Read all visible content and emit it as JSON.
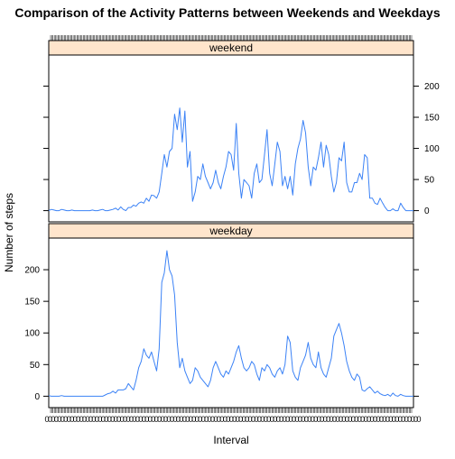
{
  "chart_data": {
    "type": "line",
    "title": "Comparison of the Activity Patterns between Weekends and Weekdays",
    "xlabel": "Interval",
    "ylabel": "Number of steps",
    "ylim": [
      -18,
      250
    ],
    "yticks": [
      0,
      50,
      100,
      150,
      200
    ],
    "line_color": "#3b82f6",
    "strip_color": "#ffe5cc",
    "grid": false,
    "x_tick_label_note": "dense overlapping interval labels (0–2355), unreadable",
    "panels": [
      {
        "name": "weekend",
        "x_index_range": [
          0,
          287
        ],
        "values": [
          [
            0,
            0
          ],
          [
            5,
            2
          ],
          [
            10,
            1
          ],
          [
            15,
            0
          ],
          [
            20,
            0
          ],
          [
            25,
            2
          ],
          [
            30,
            1
          ],
          [
            35,
            0
          ],
          [
            40,
            0
          ],
          [
            45,
            1
          ],
          [
            50,
            0
          ],
          [
            55,
            0
          ],
          [
            60,
            0
          ],
          [
            65,
            0
          ],
          [
            70,
            0
          ],
          [
            75,
            0
          ],
          [
            80,
            0
          ],
          [
            85,
            1
          ],
          [
            90,
            0
          ],
          [
            95,
            0
          ],
          [
            100,
            1
          ],
          [
            105,
            2
          ],
          [
            110,
            0
          ],
          [
            115,
            0
          ],
          [
            120,
            1
          ],
          [
            125,
            2
          ],
          [
            130,
            4
          ],
          [
            135,
            1
          ],
          [
            140,
            6
          ],
          [
            145,
            2
          ],
          [
            150,
            0
          ],
          [
            155,
            5
          ],
          [
            160,
            5
          ],
          [
            165,
            9
          ],
          [
            170,
            7
          ],
          [
            175,
            12
          ],
          [
            180,
            14
          ],
          [
            185,
            12
          ],
          [
            190,
            20
          ],
          [
            195,
            15
          ],
          [
            200,
            25
          ],
          [
            205,
            24
          ],
          [
            210,
            20
          ],
          [
            215,
            30
          ],
          [
            220,
            60
          ],
          [
            225,
            90
          ],
          [
            230,
            70
          ],
          [
            235,
            95
          ],
          [
            240,
            100
          ],
          [
            245,
            155
          ],
          [
            250,
            130
          ],
          [
            255,
            165
          ],
          [
            260,
            110
          ],
          [
            265,
            160
          ],
          [
            270,
            70
          ],
          [
            275,
            95
          ],
          [
            280,
            15
          ],
          [
            285,
            30
          ],
          [
            290,
            55
          ],
          [
            295,
            50
          ],
          [
            300,
            75
          ],
          [
            305,
            55
          ],
          [
            310,
            45
          ],
          [
            315,
            35
          ],
          [
            320,
            45
          ],
          [
            325,
            65
          ],
          [
            330,
            45
          ],
          [
            335,
            35
          ],
          [
            340,
            55
          ],
          [
            345,
            70
          ],
          [
            350,
            95
          ],
          [
            355,
            90
          ],
          [
            360,
            65
          ],
          [
            365,
            140
          ],
          [
            370,
            60
          ],
          [
            375,
            20
          ],
          [
            380,
            50
          ],
          [
            385,
            45
          ],
          [
            390,
            40
          ],
          [
            395,
            20
          ],
          [
            400,
            60
          ],
          [
            405,
            75
          ],
          [
            410,
            45
          ],
          [
            415,
            50
          ],
          [
            420,
            90
          ],
          [
            425,
            130
          ],
          [
            430,
            60
          ],
          [
            435,
            40
          ],
          [
            440,
            75
          ],
          [
            445,
            110
          ],
          [
            450,
            95
          ],
          [
            455,
            40
          ],
          [
            460,
            55
          ],
          [
            465,
            35
          ],
          [
            470,
            55
          ],
          [
            475,
            25
          ],
          [
            480,
            75
          ],
          [
            485,
            100
          ],
          [
            490,
            115
          ],
          [
            495,
            145
          ],
          [
            500,
            125
          ],
          [
            505,
            70
          ],
          [
            510,
            40
          ],
          [
            515,
            70
          ],
          [
            520,
            65
          ],
          [
            525,
            85
          ],
          [
            530,
            110
          ],
          [
            535,
            70
          ],
          [
            540,
            105
          ],
          [
            545,
            90
          ],
          [
            550,
            55
          ],
          [
            555,
            30
          ],
          [
            560,
            45
          ],
          [
            565,
            85
          ],
          [
            570,
            80
          ],
          [
            575,
            110
          ],
          [
            580,
            45
          ],
          [
            585,
            30
          ],
          [
            590,
            30
          ],
          [
            595,
            45
          ],
          [
            600,
            45
          ],
          [
            605,
            60
          ],
          [
            610,
            50
          ],
          [
            615,
            90
          ],
          [
            620,
            85
          ],
          [
            625,
            20
          ],
          [
            630,
            20
          ],
          [
            635,
            12
          ],
          [
            640,
            10
          ],
          [
            645,
            20
          ],
          [
            650,
            12
          ],
          [
            655,
            5
          ],
          [
            660,
            0
          ],
          [
            665,
            0
          ],
          [
            670,
            3
          ],
          [
            675,
            0
          ],
          [
            680,
            0
          ],
          [
            685,
            12
          ],
          [
            690,
            5
          ],
          [
            695,
            0
          ],
          [
            700,
            0
          ],
          [
            705,
            0
          ],
          [
            710,
            0
          ]
        ]
      },
      {
        "name": "weekday",
        "x_index_range": [
          0,
          287
        ],
        "values": [
          [
            0,
            1
          ],
          [
            5,
            0
          ],
          [
            10,
            0
          ],
          [
            15,
            0
          ],
          [
            20,
            0
          ],
          [
            25,
            1
          ],
          [
            30,
            0
          ],
          [
            35,
            0
          ],
          [
            40,
            0
          ],
          [
            45,
            0
          ],
          [
            50,
            0
          ],
          [
            55,
            0
          ],
          [
            60,
            0
          ],
          [
            65,
            0
          ],
          [
            70,
            0
          ],
          [
            75,
            0
          ],
          [
            80,
            0
          ],
          [
            85,
            0
          ],
          [
            90,
            0
          ],
          [
            95,
            0
          ],
          [
            100,
            0
          ],
          [
            105,
            0
          ],
          [
            110,
            2
          ],
          [
            115,
            4
          ],
          [
            120,
            5
          ],
          [
            125,
            8
          ],
          [
            130,
            5
          ],
          [
            135,
            10
          ],
          [
            140,
            10
          ],
          [
            145,
            10
          ],
          [
            150,
            12
          ],
          [
            155,
            20
          ],
          [
            160,
            15
          ],
          [
            165,
            10
          ],
          [
            170,
            25
          ],
          [
            175,
            45
          ],
          [
            180,
            55
          ],
          [
            185,
            75
          ],
          [
            190,
            65
          ],
          [
            195,
            60
          ],
          [
            200,
            70
          ],
          [
            205,
            55
          ],
          [
            210,
            40
          ],
          [
            215,
            75
          ],
          [
            220,
            180
          ],
          [
            225,
            195
          ],
          [
            230,
            230
          ],
          [
            235,
            200
          ],
          [
            240,
            190
          ],
          [
            245,
            160
          ],
          [
            250,
            85
          ],
          [
            255,
            45
          ],
          [
            260,
            60
          ],
          [
            265,
            40
          ],
          [
            270,
            30
          ],
          [
            275,
            20
          ],
          [
            280,
            25
          ],
          [
            285,
            45
          ],
          [
            290,
            40
          ],
          [
            295,
            30
          ],
          [
            300,
            25
          ],
          [
            305,
            20
          ],
          [
            310,
            15
          ],
          [
            315,
            25
          ],
          [
            320,
            45
          ],
          [
            325,
            55
          ],
          [
            330,
            45
          ],
          [
            335,
            35
          ],
          [
            340,
            30
          ],
          [
            345,
            40
          ],
          [
            350,
            35
          ],
          [
            355,
            45
          ],
          [
            360,
            55
          ],
          [
            365,
            70
          ],
          [
            370,
            80
          ],
          [
            375,
            60
          ],
          [
            380,
            45
          ],
          [
            385,
            40
          ],
          [
            390,
            45
          ],
          [
            395,
            55
          ],
          [
            400,
            50
          ],
          [
            405,
            35
          ],
          [
            410,
            25
          ],
          [
            415,
            45
          ],
          [
            420,
            40
          ],
          [
            425,
            50
          ],
          [
            430,
            45
          ],
          [
            435,
            35
          ],
          [
            440,
            30
          ],
          [
            445,
            40
          ],
          [
            450,
            45
          ],
          [
            455,
            35
          ],
          [
            460,
            50
          ],
          [
            465,
            95
          ],
          [
            470,
            85
          ],
          [
            475,
            40
          ],
          [
            480,
            30
          ],
          [
            485,
            25
          ],
          [
            490,
            45
          ],
          [
            495,
            55
          ],
          [
            500,
            65
          ],
          [
            505,
            85
          ],
          [
            510,
            60
          ],
          [
            515,
            50
          ],
          [
            520,
            45
          ],
          [
            525,
            70
          ],
          [
            530,
            45
          ],
          [
            535,
            35
          ],
          [
            540,
            30
          ],
          [
            545,
            45
          ],
          [
            550,
            60
          ],
          [
            555,
            95
          ],
          [
            560,
            105
          ],
          [
            565,
            115
          ],
          [
            570,
            100
          ],
          [
            575,
            80
          ],
          [
            580,
            55
          ],
          [
            585,
            40
          ],
          [
            590,
            30
          ],
          [
            595,
            25
          ],
          [
            600,
            35
          ],
          [
            605,
            30
          ],
          [
            610,
            10
          ],
          [
            615,
            8
          ],
          [
            620,
            12
          ],
          [
            625,
            15
          ],
          [
            630,
            10
          ],
          [
            635,
            5
          ],
          [
            640,
            8
          ],
          [
            645,
            4
          ],
          [
            650,
            2
          ],
          [
            655,
            1
          ],
          [
            660,
            3
          ],
          [
            665,
            0
          ],
          [
            670,
            5
          ],
          [
            675,
            1
          ],
          [
            680,
            0
          ],
          [
            685,
            3
          ],
          [
            690,
            1
          ],
          [
            695,
            0
          ],
          [
            700,
            0
          ],
          [
            705,
            0
          ],
          [
            710,
            0
          ]
        ]
      }
    ]
  }
}
